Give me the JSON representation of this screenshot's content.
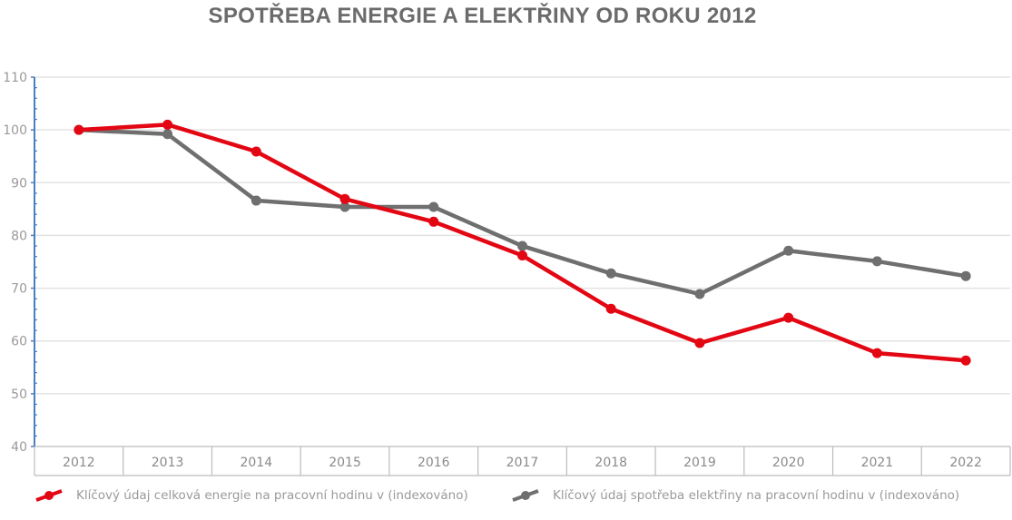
{
  "chart_data": {
    "type": "line",
    "title": "SPOTŘEBA ENERGIE A ELEKTŘINY OD ROKU 2012",
    "xlabel": "",
    "ylabel": "",
    "x": [
      "2012",
      "2013",
      "2014",
      "2015",
      "2016",
      "2017",
      "2018",
      "2019",
      "2020",
      "2021",
      "2022"
    ],
    "ylim": [
      40,
      110
    ],
    "yticks": [
      40,
      50,
      60,
      70,
      80,
      90,
      100,
      110
    ],
    "ytick_labels": [
      "40",
      "50",
      "60",
      "70",
      "80",
      "90",
      "100",
      "110"
    ],
    "grid": true,
    "legend_position": "bottom",
    "series": [
      {
        "name": "Klíčový údaj celková energie na pracovní hodinu v (indexováno)",
        "color": "#e30613",
        "values": [
          100,
          101,
          95.9,
          86.9,
          82.6,
          76.2,
          66.1,
          59.6,
          64.4,
          57.7,
          56.3
        ]
      },
      {
        "name": "Klíčový údaj spotřeba elektřiny na pracovní hodinu v (indexováno)",
        "color": "#6f6f6f",
        "values": [
          100,
          99.2,
          86.6,
          85.4,
          85.4,
          78.0,
          72.8,
          68.9,
          77.1,
          75.1,
          72.3
        ]
      }
    ]
  }
}
